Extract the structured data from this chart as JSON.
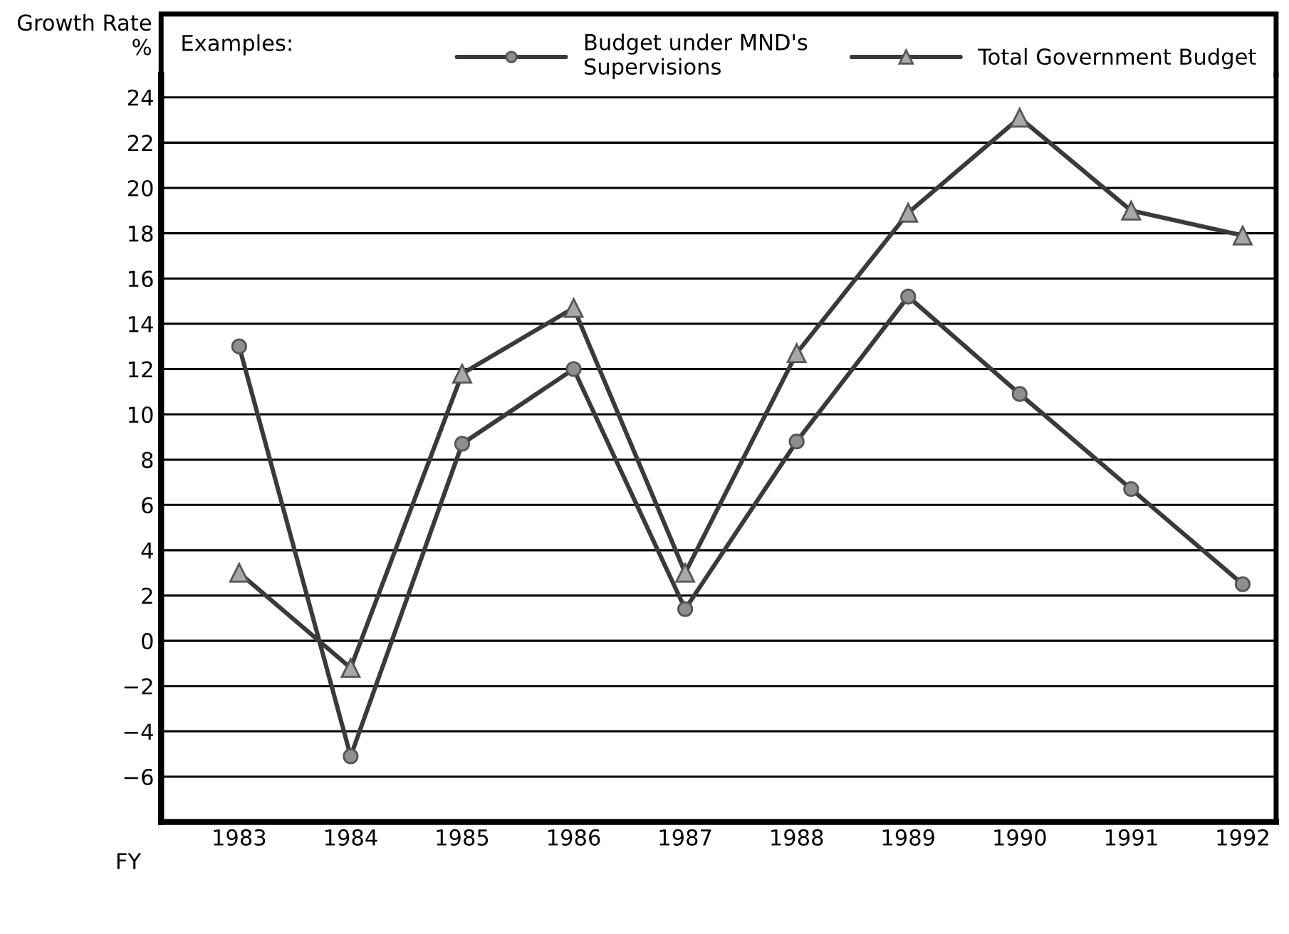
{
  "chart_data": {
    "type": "line",
    "categories": [
      "1983",
      "1984",
      "1985",
      "1986",
      "1987",
      "1988",
      "1989",
      "1990",
      "1991",
      "1992"
    ],
    "series": [
      {
        "name": "Budget under MND's\nSupervisions",
        "color": "#8f8f8f",
        "marker": "circle",
        "values": [
          13,
          -5.1,
          8.7,
          12,
          1.4,
          8.8,
          15.2,
          10.9,
          6.7,
          2.5
        ]
      },
      {
        "name": "Total Government Budget",
        "color": "#a8a8a8",
        "marker": "triangle",
        "values": [
          3,
          -1.2,
          11.8,
          14.7,
          3,
          12.7,
          18.9,
          23.1,
          19,
          17.9
        ]
      }
    ],
    "xlabel": "FY",
    "ylabel": "Growth Rate\n%",
    "annotations": [
      "Examples:"
    ],
    "ylim": [
      -8,
      25
    ],
    "yticks": [
      -6,
      -4,
      -2,
      0,
      2,
      4,
      6,
      8,
      10,
      12,
      14,
      16,
      18,
      20,
      22,
      24
    ],
    "grid": "y",
    "legend": "top right"
  }
}
